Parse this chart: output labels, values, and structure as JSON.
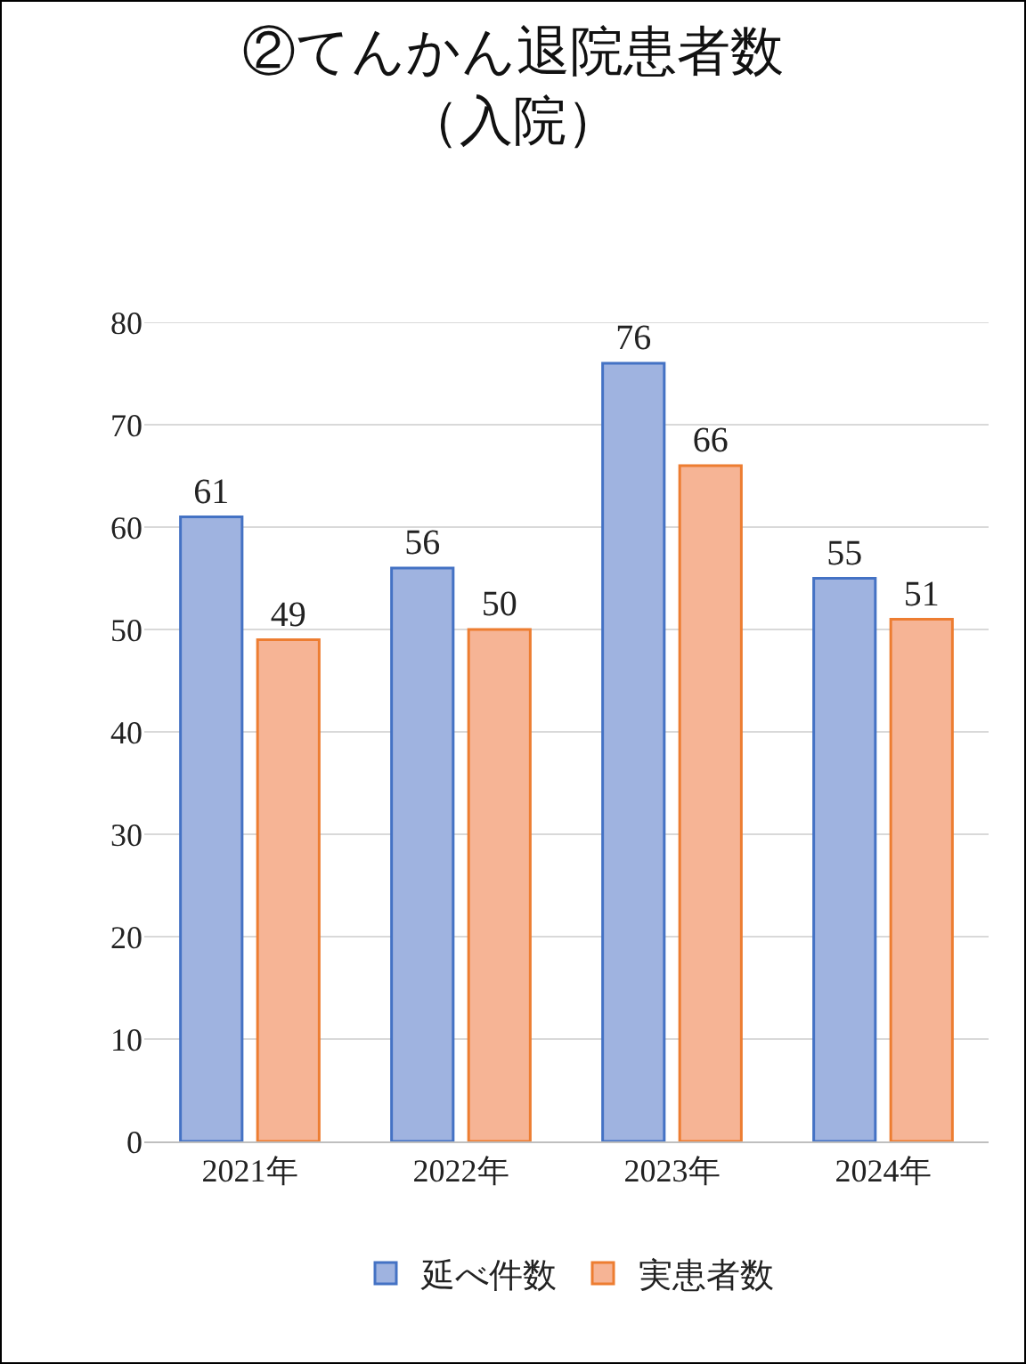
{
  "chart_data": {
    "type": "bar",
    "title": "②てんかん退院患者数",
    "subtitle": "（入院）",
    "categories": [
      "2021年",
      "2022年",
      "2023年",
      "2024年"
    ],
    "series": [
      {
        "name": "延べ件数",
        "color": "#9fb3e0",
        "values": [
          61,
          56,
          76,
          55
        ]
      },
      {
        "name": "実患者数",
        "color": "#f6b495",
        "values": [
          49,
          50,
          66,
          51
        ]
      }
    ],
    "ylim": [
      0,
      80
    ],
    "yticks": [
      0,
      10,
      20,
      30,
      40,
      50,
      60,
      70,
      80
    ],
    "grid": "y",
    "legend": "bottom",
    "data_labels": true
  }
}
